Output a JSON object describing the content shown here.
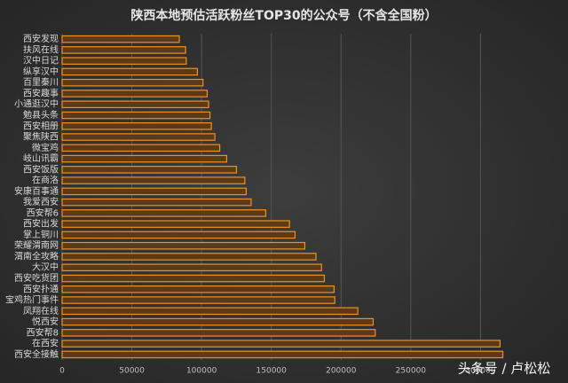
{
  "chart_data": {
    "type": "barh",
    "title": "陕西本地预估活跃粉丝TOP30的公众号（不含全国粉）",
    "watermark": "头条号 / 卢松松",
    "categories": [
      "西安发现",
      "扶风在线",
      "汉中日记",
      "纵享汉中",
      "百里秦川",
      "西安趣事",
      "小通逛汉中",
      "勉县头条",
      "西安相册",
      "聚焦陕西",
      "微宝鸡",
      "岐山讯霸",
      "西安饭版",
      "在商洛",
      "安康百事通",
      "我爱西安",
      "西安帮6",
      "西安出发",
      "掌上铜川",
      "荣耀渭南网",
      "渭南全攻略",
      "大汉中",
      "西安吃货团",
      "西安扑通",
      "宝鸡热门事件",
      "凤翔在线",
      "悦西安",
      "西安帮8",
      "在西安",
      "西安全接触"
    ],
    "values": [
      84000,
      88500,
      89000,
      97000,
      101000,
      104000,
      105000,
      106000,
      107000,
      109500,
      113000,
      118000,
      125000,
      131000,
      132000,
      135500,
      146000,
      163000,
      167000,
      174000,
      182000,
      186000,
      188000,
      195000,
      195500,
      212000,
      223000,
      224500,
      314000,
      316000
    ],
    "color": "#f0901e",
    "xlim": [
      0,
      350000
    ],
    "xticks": [
      0,
      50000,
      100000,
      150000,
      200000,
      250000,
      300000
    ],
    "grid": true
  }
}
